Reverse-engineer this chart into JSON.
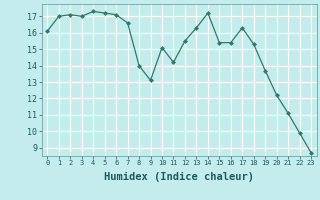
{
  "x": [
    0,
    1,
    2,
    3,
    4,
    5,
    6,
    7,
    8,
    9,
    10,
    11,
    12,
    13,
    14,
    15,
    16,
    17,
    18,
    19,
    20,
    21,
    22,
    23
  ],
  "y": [
    16.1,
    17.0,
    17.1,
    17.0,
    17.3,
    17.2,
    17.1,
    16.6,
    14.0,
    13.1,
    15.1,
    14.2,
    15.5,
    16.3,
    17.2,
    15.4,
    15.4,
    16.3,
    15.3,
    13.7,
    12.2,
    11.1,
    9.9,
    8.7
  ],
  "line_color": "#2d7a6e",
  "marker": "D",
  "marker_size": 2.0,
  "bg_color": "#c5ecec",
  "grid_color": "#ffffff",
  "xlabel": "Humidex (Indice chaleur)",
  "xlabel_fontsize": 7.5,
  "ylabel_ticks": [
    9,
    10,
    11,
    12,
    13,
    14,
    15,
    16,
    17
  ],
  "xlim": [
    -0.5,
    23.5
  ],
  "ylim": [
    8.5,
    17.75
  ]
}
